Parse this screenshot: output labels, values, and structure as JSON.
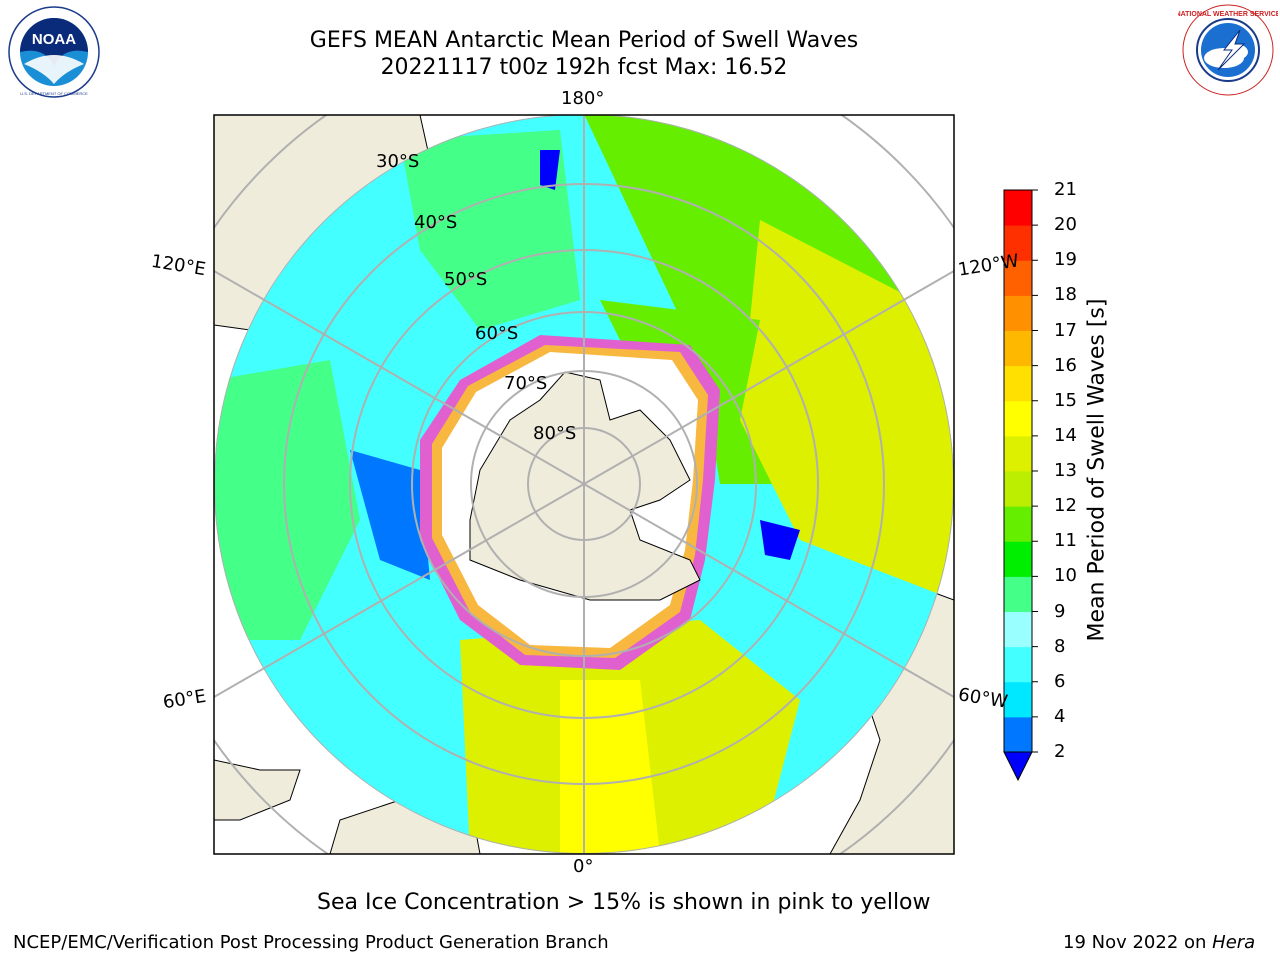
{
  "header": {
    "title_line1": "GEFS MEAN Antarctic Mean Period of Swell Waves",
    "title_line2": "20221117 t00z 192h fcst   Max: 16.52"
  },
  "logos": {
    "left": {
      "icon": "noaa-logo-icon",
      "text": "NOAA",
      "ring_text": "NATIONAL OCEANIC AND ATMOSPHERIC ADMINISTRATION · U.S. DEPARTMENT OF COMMERCE"
    },
    "right": {
      "icon": "nws-logo-icon",
      "ring_text": "NATIONAL WEATHER SERVICE"
    }
  },
  "map": {
    "projection": "south-polar-stereographic",
    "colors": {
      "land": "#efecdc",
      "ice": "#ffffff",
      "ice_edge_pink": "#e060d0",
      "ice_edge_yellow": "#f8b840",
      "grid": "#b0b0b0"
    },
    "longitude_labels": {
      "top": "180°",
      "bottom": "0°",
      "upper_left": "120°E",
      "lower_left": "60°E",
      "upper_right": "120°W",
      "lower_right": "60°W"
    },
    "latitude_labels": [
      "30°S",
      "40°S",
      "50°S",
      "60°S",
      "70°S",
      "80°S"
    ]
  },
  "colorbar": {
    "label": "Mean Period of Swell Waves [s]",
    "ticks": [
      "2",
      "4",
      "6",
      "8",
      "9",
      "10",
      "11",
      "12",
      "13",
      "14",
      "15",
      "16",
      "17",
      "18",
      "19",
      "20",
      "21"
    ],
    "colors": [
      "#0077ff",
      "#00e8ff",
      "#44ffff",
      "#99ffff",
      "#44ff88",
      "#00ee00",
      "#66ee00",
      "#bbee00",
      "#ddf000",
      "#ffff00",
      "#ffe000",
      "#ffb800",
      "#ff9000",
      "#ff6000",
      "#ff3000",
      "#ff0000"
    ],
    "under_color": "#0000ff"
  },
  "caption": "Sea Ice Concentration > 15% is shown in pink to yellow",
  "footer": {
    "left": "NCEP/EMC/Verification Post Processing Product Generation Branch",
    "right_date": "19 Nov 2022 on ",
    "right_host": "Hera"
  }
}
